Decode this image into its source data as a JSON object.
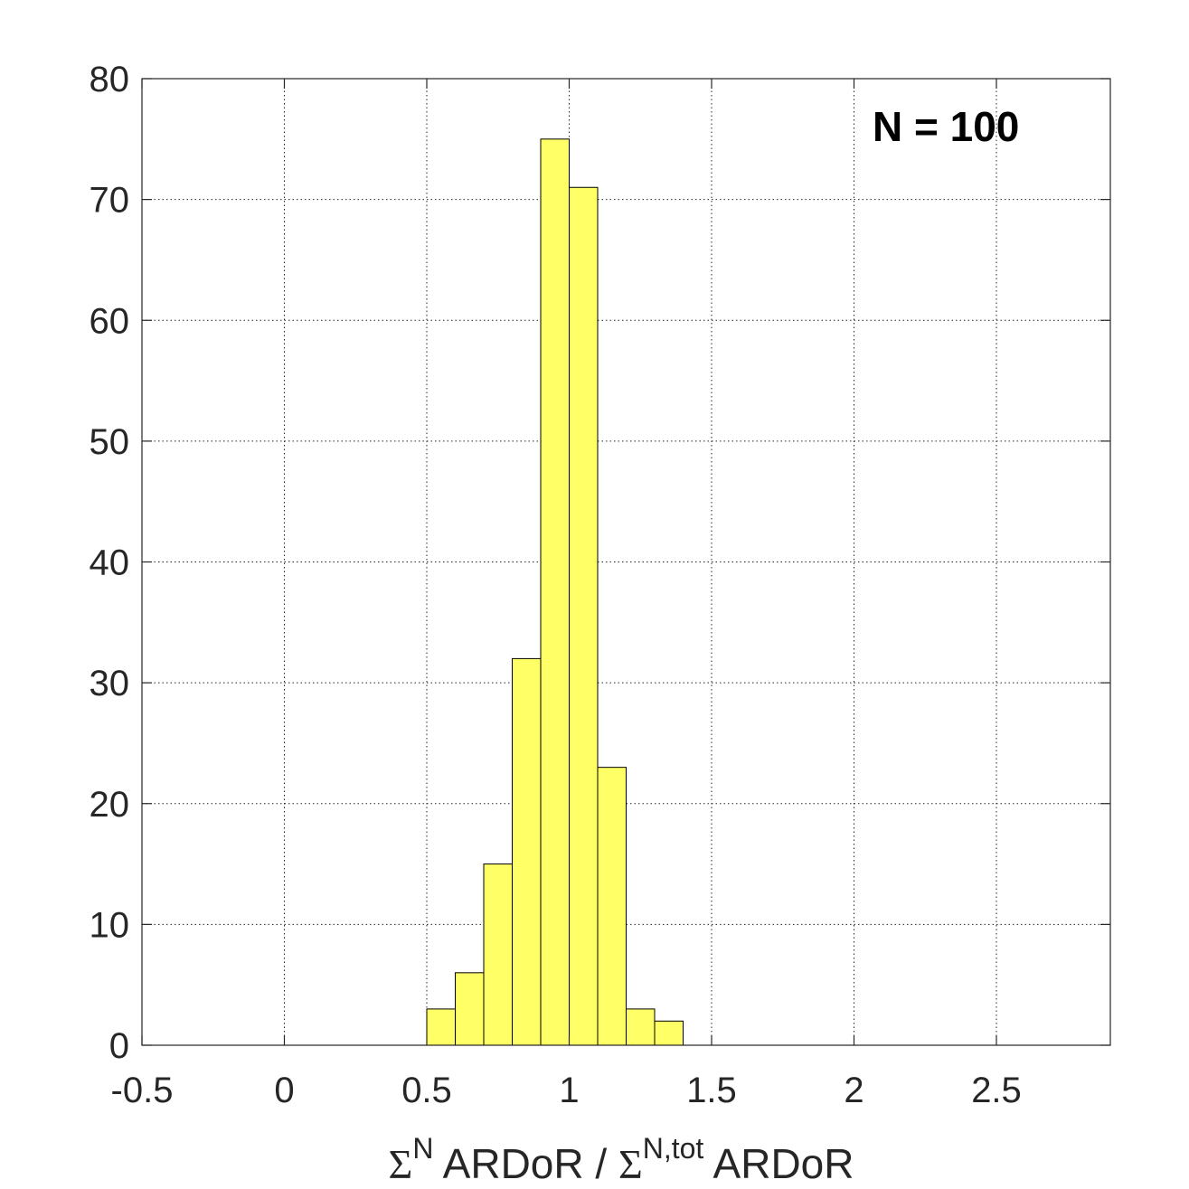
{
  "chart_data": {
    "type": "bar",
    "subtype": "histogram",
    "bin_width": 0.1,
    "bins": [
      {
        "from": 0.5,
        "to": 0.6,
        "count": 3
      },
      {
        "from": 0.6,
        "to": 0.7,
        "count": 6
      },
      {
        "from": 0.7,
        "to": 0.8,
        "count": 15
      },
      {
        "from": 0.8,
        "to": 0.9,
        "count": 32
      },
      {
        "from": 0.9,
        "to": 1.0,
        "count": 75
      },
      {
        "from": 1.0,
        "to": 1.1,
        "count": 71
      },
      {
        "from": 1.1,
        "to": 1.2,
        "count": 23
      },
      {
        "from": 1.2,
        "to": 1.3,
        "count": 3
      },
      {
        "from": 1.3,
        "to": 1.4,
        "count": 2
      }
    ],
    "xlim": [
      -0.5,
      2.9
    ],
    "ylim": [
      0,
      80
    ],
    "x_ticks": [
      -0.5,
      0,
      0.5,
      1,
      1.5,
      2,
      2.5
    ],
    "x_tick_labels": [
      "-0.5",
      "0",
      "0.5",
      "1",
      "1.5",
      "2",
      "2.5"
    ],
    "y_ticks": [
      0,
      10,
      20,
      30,
      40,
      50,
      60,
      70,
      80
    ],
    "y_tick_labels": [
      "0",
      "10",
      "20",
      "30",
      "40",
      "50",
      "60",
      "70",
      "80"
    ],
    "xlabel": {
      "sym1": "Σ",
      "sup1": "N",
      "middle": " ARDoR / ",
      "sym2": "Σ",
      "sup2": "N,tot",
      "end": " ARDoR"
    },
    "ylabel": "",
    "title": "",
    "annotation": "N = 100",
    "grid": true,
    "bar_color": "#ffff66",
    "bar_edge_color": "#000000"
  }
}
